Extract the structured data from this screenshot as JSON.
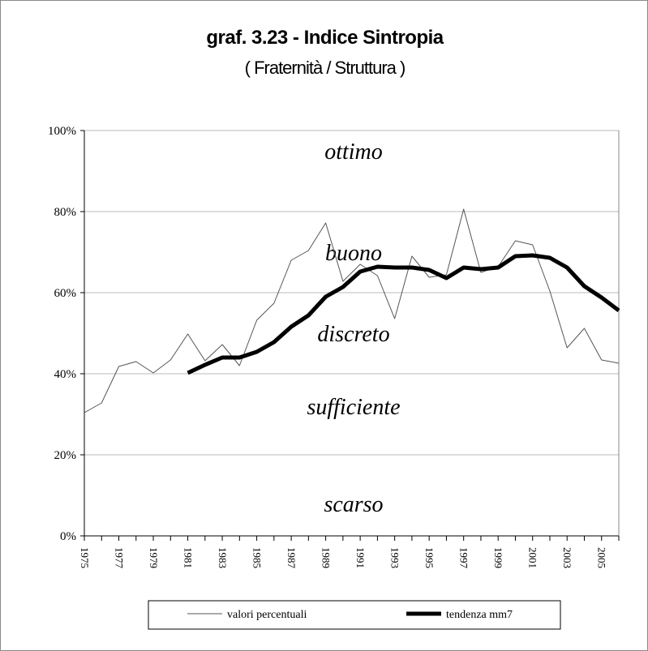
{
  "chart_data": {
    "type": "line",
    "title": "graf. 3.23 - Indice Sintropia",
    "subtitle": "( Fraternità / Struttura )",
    "x": [
      1975,
      1976,
      1977,
      1978,
      1979,
      1980,
      1981,
      1982,
      1983,
      1984,
      1985,
      1986,
      1987,
      1988,
      1989,
      1990,
      1991,
      1992,
      1993,
      1994,
      1995,
      1996,
      1997,
      1998,
      1999,
      2000,
      2001,
      2002,
      2003,
      2004,
      2005,
      2006
    ],
    "x_tick_labels": [
      "1975",
      "1977",
      "1979",
      "1981",
      "1983",
      "1985",
      "1987",
      "1989",
      "1991",
      "1993",
      "1995",
      "1997",
      "1999",
      "2001",
      "2003",
      "2005"
    ],
    "y_tick_labels": [
      "0%",
      "20%",
      "40%",
      "60%",
      "80%",
      "100%"
    ],
    "ylim": [
      0,
      100
    ],
    "grid": true,
    "legend": "bottom",
    "series": [
      {
        "name": "valori percentuali",
        "values": [
          30.4,
          32.8,
          41.8,
          43,
          40.2,
          43.4,
          49.8,
          43.2,
          47.2,
          42,
          53.2,
          57.4,
          68,
          70.4,
          77.2,
          62.8,
          67,
          64.2,
          53.6,
          69,
          63.8,
          64.4,
          80.6,
          65,
          66.4,
          72.8,
          71.8,
          60.4,
          46.4,
          51.2,
          43.4,
          42.6
        ]
      },
      {
        "name": "tendenza mm7",
        "values": [
          null,
          null,
          null,
          null,
          null,
          null,
          40.2,
          42.2,
          44,
          44,
          45.4,
          47.8,
          51.6,
          54.4,
          59,
          61.4,
          65.2,
          66.4,
          66.2,
          66.2,
          65.6,
          63.6,
          66.2,
          65.8,
          66.2,
          69,
          69.2,
          68.6,
          66.2,
          61.6,
          58.8,
          55.6
        ]
      }
    ],
    "zones": [
      {
        "label": "ottimo",
        "y": 95
      },
      {
        "label": "buono",
        "y": 70
      },
      {
        "label": "discreto",
        "y": 50
      },
      {
        "label": "sufficiente",
        "y": 32
      },
      {
        "label": "scarso",
        "y": 8
      }
    ]
  }
}
